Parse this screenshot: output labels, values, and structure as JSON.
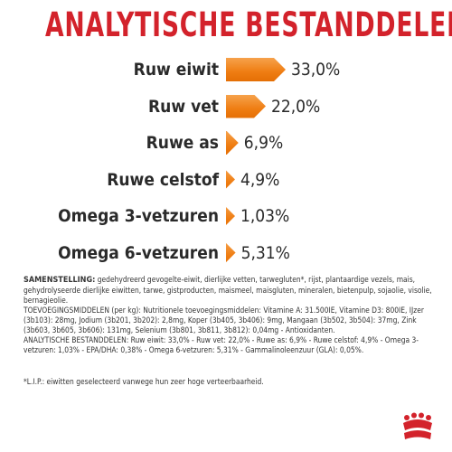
{
  "title": "ANALYTISCHE BESTANDDELEN",
  "nutrients": [
    {
      "label": "Ruw eiwit",
      "value": 33.0,
      "display": "33,0%"
    },
    {
      "label": "Ruw vet",
      "value": 22.0,
      "display": "22,0%"
    },
    {
      "label": "Ruwe as",
      "value": 6.9,
      "display": "6,9%"
    },
    {
      "label": "Ruwe celstof",
      "value": 4.9,
      "display": "4,9%"
    },
    {
      "label": "Omega 3-vetzuren",
      "value": 1.03,
      "display": "1,03%"
    },
    {
      "label": "Omega 6-vetzuren",
      "value": 5.31,
      "display": "5,31%"
    }
  ],
  "composition_heading": "SAMENSTELLING:",
  "composition_text": " gedehydreerd gevogelte-eiwit, dierlijke vetten, tarwegluten*, rijst, plantaardige vezels, mais, gehydrolyseerde dierlijke eiwitten, tarwe, gistproducten, maismeel, maisgluten, mineralen, bietenpulp, sojaolie, visolie, bernagieolie.",
  "additives_text": "TOEVOEGINGSMIDDELEN (per kg): Nutritionele toevoegingsmiddelen: Vitamine A: 31.500IE, Vitamine D3: 800IE, IJzer (3b103): 28mg, Jodium (3b201, 3b202): 2,8mg, Koper (3b405, 3b406): 9mg, Mangaan (3b502, 3b504): 37mg, Zink (3b603, 3b605, 3b606): 131mg, Selenium (3b801, 3b811, 3b812): 0,04mg - Antioxidanten.",
  "analytical_text": "ANALYTISCHE BESTANDDELEN: Ruw eiwit: 33,0% - Ruw vet: 22,0% - Ruwe as: 6,9% - Ruwe celstof: 4,9% - Omega 3-vetzuren: 1,03% - EPA/DHA: 0,38% - Omega 6-vetzuren: 5,31% - Gammalinoleenzuur (GLA): 0,05%.",
  "footnote": "*L.I.P.: eiwitten geselecteerd vanwege hun zeer hoge verteerbaarheid.",
  "brand_color": "#d3222b",
  "bar_color": "#ef7d12",
  "logo_icon": "royal-canin-crown-logo"
}
